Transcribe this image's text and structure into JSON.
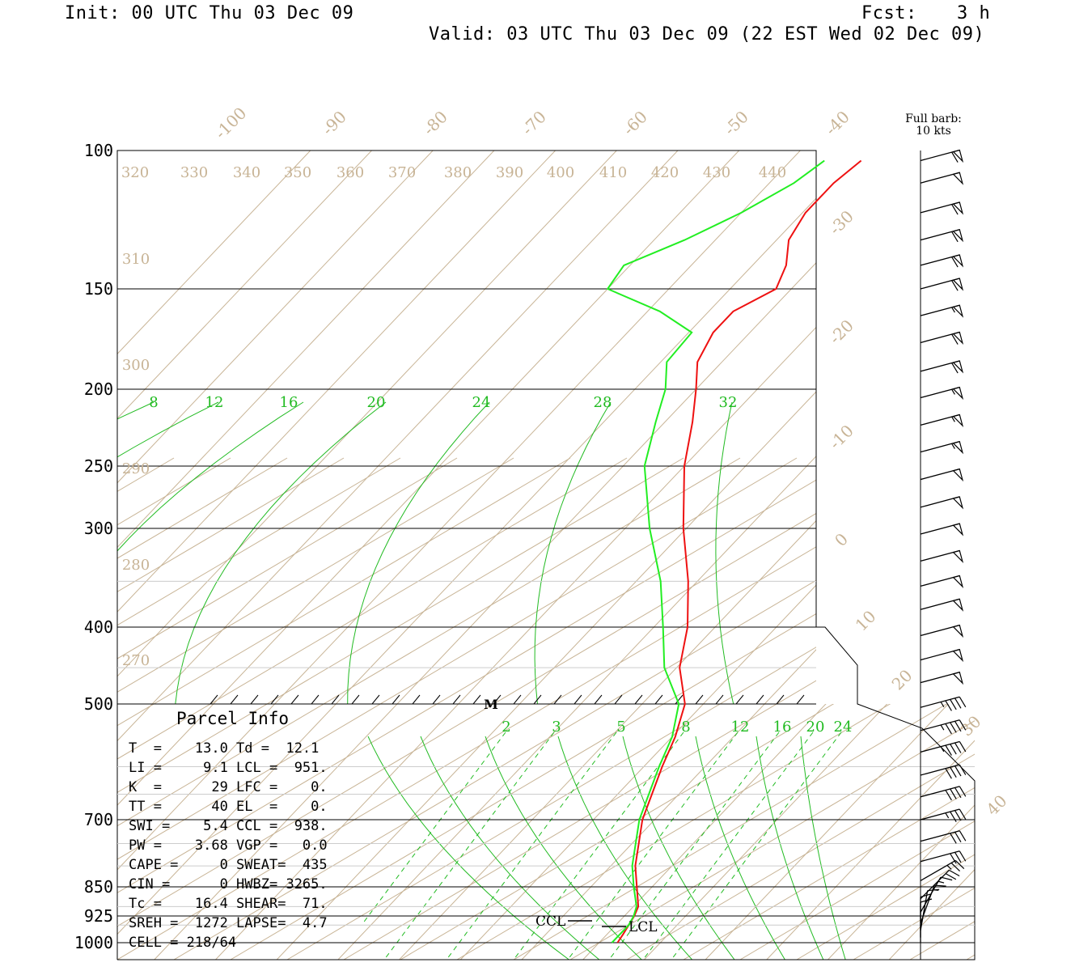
{
  "header": {
    "init": "Init: 00 UTC Thu 03 Dec 09",
    "fcst_label": "Fcst:",
    "fcst_value": "3 h",
    "valid": "Valid: 03 UTC Thu 03 Dec 09 (22 EST Wed 02 Dec 09)"
  },
  "barb_legend": {
    "line1": "Full barb:",
    "line2": "10 kts"
  },
  "colors": {
    "temperature": "#ee1111",
    "dewpoint": "#22ee22",
    "mixing_ratio": "#22bb22",
    "isotherm": "#c8b496",
    "isobar": "#000000"
  },
  "chart_data": {
    "type": "line",
    "diagram": "skew-T log-P",
    "pressure_levels": [
      "100",
      "150",
      "200",
      "250",
      "300",
      "400",
      "500",
      "700",
      "850",
      "925",
      "1000"
    ],
    "isotherm_labels": [
      "-100",
      "-90",
      "-80",
      "-70",
      "-60",
      "-50",
      "-40",
      "-30",
      "-20",
      "-10",
      "0",
      "10",
      "20",
      "30",
      "40"
    ],
    "theta_upper_labels": [
      "320",
      "330",
      "340",
      "350",
      "360",
      "370",
      "380",
      "390",
      "400",
      "410",
      "420",
      "430",
      "440"
    ],
    "theta_left_labels": [
      "310",
      "300",
      "290",
      "280",
      "270"
    ],
    "mixing_ratio_upper_labels": [
      "8",
      "12",
      "16",
      "20",
      "24",
      "28",
      "32"
    ],
    "mixing_ratio_lower_labels": [
      "2",
      "3",
      "5",
      "8",
      "12",
      "16",
      "20",
      "24"
    ],
    "series": [
      {
        "name": "temperature",
        "points": [
          [
            1000,
            13.0
          ],
          [
            975,
            12.6
          ],
          [
            950,
            12.1
          ],
          [
            925,
            11.6
          ],
          [
            900,
            10.8
          ],
          [
            850,
            7.5
          ],
          [
            800,
            4.0
          ],
          [
            700,
            -2.0
          ],
          [
            600,
            -7.0
          ],
          [
            550,
            -9.5
          ],
          [
            500,
            -13.0
          ],
          [
            450,
            -19.5
          ],
          [
            400,
            -24.5
          ],
          [
            350,
            -31.5
          ],
          [
            300,
            -40.5
          ],
          [
            250,
            -50.0
          ],
          [
            220,
            -55.5
          ],
          [
            200,
            -60.0
          ],
          [
            185,
            -64.0
          ],
          [
            170,
            -66.0
          ],
          [
            160,
            -66.0
          ],
          [
            150,
            -62.5
          ],
          [
            140,
            -64.5
          ],
          [
            130,
            -68.0
          ],
          [
            120,
            -69.5
          ],
          [
            110,
            -69.5
          ],
          [
            103,
            -68.5
          ]
        ]
      },
      {
        "name": "dewpoint",
        "points": [
          [
            1000,
            12.1
          ],
          [
            975,
            12.1
          ],
          [
            950,
            12.1
          ],
          [
            925,
            11.5
          ],
          [
            900,
            10.5
          ],
          [
            850,
            7.0
          ],
          [
            800,
            3.5
          ],
          [
            700,
            -2.5
          ],
          [
            600,
            -7.5
          ],
          [
            550,
            -10.0
          ],
          [
            500,
            -14.0
          ],
          [
            450,
            -22.0
          ],
          [
            400,
            -28.5
          ],
          [
            350,
            -36.0
          ],
          [
            300,
            -46.0
          ],
          [
            250,
            -56.5
          ],
          [
            220,
            -61.5
          ],
          [
            200,
            -65.0
          ],
          [
            185,
            -69.0
          ],
          [
            170,
            -69.5
          ],
          [
            160,
            -78.0
          ],
          [
            150,
            -90.0
          ],
          [
            140,
            -91.0
          ],
          [
            130,
            -85.0
          ],
          [
            120,
            -80.0
          ],
          [
            110,
            -76.0
          ],
          [
            103,
            -74.5
          ]
        ]
      }
    ],
    "wind_barbs": [
      {
        "p": 103,
        "dir": 255,
        "spd": 60
      },
      {
        "p": 110,
        "dir": 255,
        "spd": 50
      },
      {
        "p": 120,
        "dir": 255,
        "spd": 60
      },
      {
        "p": 130,
        "dir": 255,
        "spd": 60
      },
      {
        "p": 140,
        "dir": 255,
        "spd": 60
      },
      {
        "p": 150,
        "dir": 255,
        "spd": 60
      },
      {
        "p": 162,
        "dir": 255,
        "spd": 55
      },
      {
        "p": 175,
        "dir": 255,
        "spd": 60
      },
      {
        "p": 190,
        "dir": 255,
        "spd": 60
      },
      {
        "p": 205,
        "dir": 255,
        "spd": 55
      },
      {
        "p": 222,
        "dir": 255,
        "spd": 55
      },
      {
        "p": 240,
        "dir": 255,
        "spd": 55
      },
      {
        "p": 260,
        "dir": 255,
        "spd": 50
      },
      {
        "p": 282,
        "dir": 255,
        "spd": 50
      },
      {
        "p": 305,
        "dir": 255,
        "spd": 50
      },
      {
        "p": 330,
        "dir": 255,
        "spd": 50
      },
      {
        "p": 355,
        "dir": 255,
        "spd": 50
      },
      {
        "p": 380,
        "dir": 255,
        "spd": 50
      },
      {
        "p": 410,
        "dir": 255,
        "spd": 50
      },
      {
        "p": 440,
        "dir": 255,
        "spd": 50
      },
      {
        "p": 470,
        "dir": 255,
        "spd": 50
      },
      {
        "p": 505,
        "dir": 255,
        "spd": 45
      },
      {
        "p": 540,
        "dir": 255,
        "spd": 45
      },
      {
        "p": 575,
        "dir": 255,
        "spd": 45
      },
      {
        "p": 615,
        "dir": 255,
        "spd": 40
      },
      {
        "p": 655,
        "dir": 255,
        "spd": 40
      },
      {
        "p": 700,
        "dir": 255,
        "spd": 35
      },
      {
        "p": 745,
        "dir": 255,
        "spd": 30
      },
      {
        "p": 790,
        "dir": 255,
        "spd": 30
      },
      {
        "p": 835,
        "dir": 240,
        "spd": 25
      },
      {
        "p": 880,
        "dir": 225,
        "spd": 20
      },
      {
        "p": 915,
        "dir": 210,
        "spd": 15
      },
      {
        "p": 945,
        "dir": 200,
        "spd": 15
      },
      {
        "p": 965,
        "dir": 190,
        "spd": 10
      },
      {
        "p": 985,
        "dir": 180,
        "spd": 10
      },
      {
        "p": 1000,
        "dir": 180,
        "spd": 10
      }
    ],
    "markers": {
      "m_label": "M",
      "m_p": 500,
      "ccl_label": "CCL",
      "ccl_p": 938,
      "lcl_label": "LCL",
      "lcl_p": 951
    }
  },
  "parcel_info": {
    "title": "Parcel Info",
    "rows": [
      "T  =    13.0 Td =  12.1",
      "LI =     9.1 LCL =  951.",
      "K  =      29 LFC =    0.",
      "TT =      40 EL  =    0.",
      "SWI =    5.4 CCL =  938.",
      "PW =    3.68 VGP =   0.0",
      "CAPE =     0 SWEAT=  435",
      "CIN =      0 HWBZ= 3265.",
      "Tc =    16.4 SHEAR=  71.",
      "SREH =  1272 LAPSE=  4.7",
      "CELL = 218/64"
    ]
  }
}
